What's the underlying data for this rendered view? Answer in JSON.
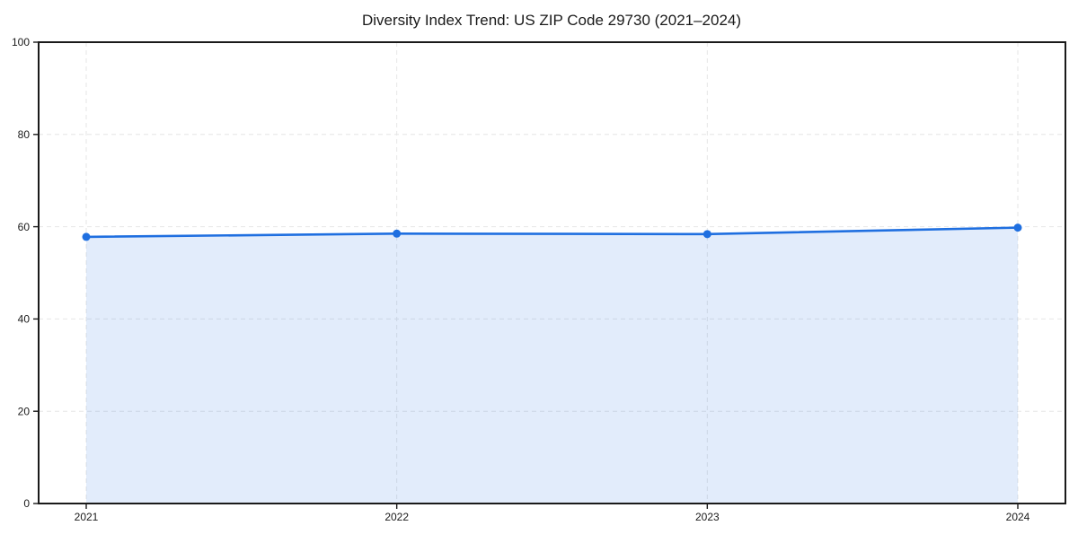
{
  "chart_data": {
    "type": "area",
    "title": "Diversity Index Trend: US ZIP Code 29730 (2021–2024)",
    "x": [
      2021,
      2022,
      2023,
      2024
    ],
    "xtick_labels": [
      "2021",
      "2022",
      "2023",
      "2024"
    ],
    "series": [
      {
        "name": "Diversity Index",
        "values": [
          57.8,
          58.5,
          58.4,
          59.8
        ]
      }
    ],
    "xlabel": "",
    "ylabel": "",
    "ylim": [
      0,
      100
    ],
    "yticks": [
      0,
      20,
      40,
      60,
      80,
      100
    ],
    "grid": "dashed-both-axes",
    "legend": "none",
    "marker": "circle",
    "colors": {
      "line": "#1f6fe0",
      "marker": "#1f6fe0",
      "fill": "rgba(31, 111, 224, 0.13)",
      "grid": "#e6e6e6",
      "axis": "#1a1a1a",
      "text": "#1a1a1a",
      "background": "#ffffff"
    }
  }
}
